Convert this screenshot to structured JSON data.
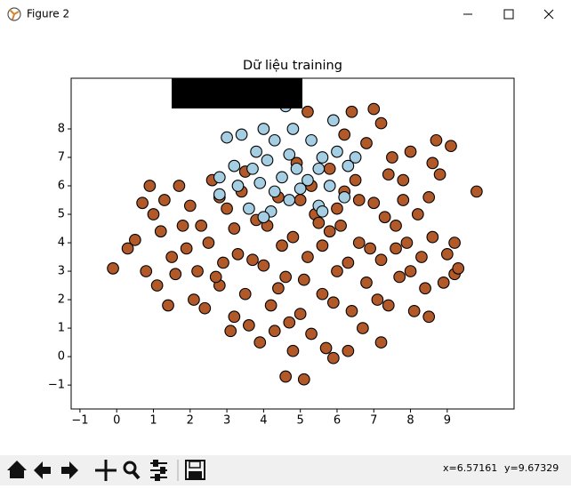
{
  "window": {
    "title": "Figure 2",
    "status": [
      "x=6.57161",
      "y=9.67329"
    ]
  },
  "chart_data": {
    "type": "scatter",
    "title": "Dữ liệu training",
    "xlim": [
      -1.24,
      10.82
    ],
    "ylim": [
      -1.84,
      9.78
    ],
    "xticks": [
      {
        "value": -1,
        "label": "−1"
      },
      0,
      1,
      2,
      3,
      4,
      5,
      6,
      7,
      8,
      9
    ],
    "yticks": [
      {
        "value": -1,
        "label": "−1"
      },
      0,
      1,
      2,
      3,
      4,
      5,
      6,
      7,
      8
    ],
    "edge_color": "#000000",
    "series": [
      {
        "color": "#b15928",
        "x": [
          -0.1,
          0.3,
          0.5,
          0.9,
          1.4,
          9.8,
          4.6,
          5.1,
          5.9,
          7.2,
          8.5,
          9.2,
          9.2,
          6.4,
          5.2,
          7.0,
          8.7,
          9.1,
          4.8,
          3.2,
          1.0,
          1.2,
          1.5,
          1.8,
          2.0,
          2.2,
          2.5,
          2.8,
          3.0,
          3.3,
          3.5,
          3.8,
          4.0,
          4.2,
          4.4,
          4.6,
          4.8,
          5.0,
          5.2,
          5.4,
          5.6,
          5.8,
          6.0,
          6.2,
          6.4,
          6.6,
          6.8,
          7.0,
          7.2,
          7.4,
          7.6,
          7.8,
          8.0,
          8.2,
          8.4,
          8.6,
          8.8,
          9.0,
          8.0,
          7.5,
          6.8,
          6.2,
          7.2,
          5.8,
          6.5,
          5.3,
          4.9,
          3.4,
          2.6,
          1.7,
          1.3,
          0.7,
          0.8,
          1.1,
          1.6,
          2.1,
          2.4,
          2.9,
          3.1,
          3.6,
          3.9,
          4.3,
          4.5,
          4.7,
          5.1,
          5.3,
          5.5,
          5.7,
          5.9,
          6.1,
          6.3,
          6.7,
          6.9,
          7.1,
          7.3,
          7.7,
          7.9,
          8.1,
          8.3,
          8.5,
          8.9,
          9.3,
          8.6,
          7.4,
          6.0,
          3.7,
          2.3,
          1.9,
          3.2,
          4.1,
          5.0,
          6.6,
          7.8,
          4.4,
          2.7,
          3.5,
          2.8,
          6.3,
          5.6,
          7.6
        ],
        "y": [
          3.1,
          3.8,
          4.1,
          6.0,
          1.8,
          5.8,
          -0.7,
          -0.8,
          -0.05,
          0.5,
          1.4,
          2.9,
          4.0,
          8.6,
          8.6,
          8.7,
          7.6,
          7.4,
          0.2,
          1.4,
          5.0,
          4.4,
          3.5,
          4.6,
          5.3,
          3.0,
          4.0,
          2.5,
          5.2,
          3.6,
          2.2,
          4.8,
          3.2,
          1.8,
          5.6,
          2.8,
          4.2,
          1.5,
          3.5,
          5.0,
          2.2,
          4.4,
          3.0,
          5.8,
          1.6,
          4.0,
          2.6,
          5.4,
          3.4,
          1.8,
          4.6,
          6.2,
          3.0,
          5.0,
          2.4,
          4.2,
          6.4,
          3.6,
          7.2,
          7.0,
          7.5,
          7.8,
          8.2,
          6.6,
          6.2,
          6.0,
          6.8,
          5.8,
          6.2,
          6.0,
          5.5,
          5.4,
          3.0,
          2.5,
          2.9,
          2.0,
          1.7,
          3.3,
          0.9,
          1.1,
          0.5,
          0.9,
          3.9,
          1.2,
          2.7,
          0.8,
          4.7,
          0.3,
          1.9,
          4.6,
          0.2,
          1.0,
          3.8,
          2.0,
          4.9,
          2.8,
          4.0,
          1.6,
          3.5,
          5.6,
          2.6,
          3.1,
          6.8,
          6.4,
          5.2,
          3.4,
          4.6,
          3.8,
          4.5,
          4.6,
          5.5,
          5.5,
          5.5,
          2.4,
          2.8,
          6.5,
          5.6,
          3.3,
          3.9,
          3.8
        ]
      },
      {
        "color": "#a6cee3",
        "x": [
          4.6,
          3.0,
          3.4,
          4.0,
          4.3,
          4.8,
          5.3,
          5.6,
          6.0,
          3.2,
          3.7,
          4.1,
          4.5,
          4.9,
          5.2,
          5.5,
          5.8,
          2.8,
          2.8,
          3.3,
          3.9,
          4.3,
          4.7,
          5.0,
          5.5,
          6.2,
          6.5,
          3.6,
          4.2,
          4.0,
          5.6,
          3.8,
          4.7,
          5.9,
          6.3
        ],
        "y": [
          8.8,
          7.7,
          7.8,
          8.0,
          7.6,
          8.0,
          7.6,
          7.0,
          7.2,
          6.7,
          6.6,
          6.9,
          6.3,
          6.6,
          6.2,
          6.6,
          6.0,
          6.3,
          5.7,
          6.0,
          6.1,
          5.8,
          5.5,
          5.9,
          5.3,
          5.6,
          7.0,
          5.2,
          5.1,
          4.9,
          5.1,
          7.2,
          7.1,
          8.3,
          6.7
        ]
      }
    ]
  }
}
